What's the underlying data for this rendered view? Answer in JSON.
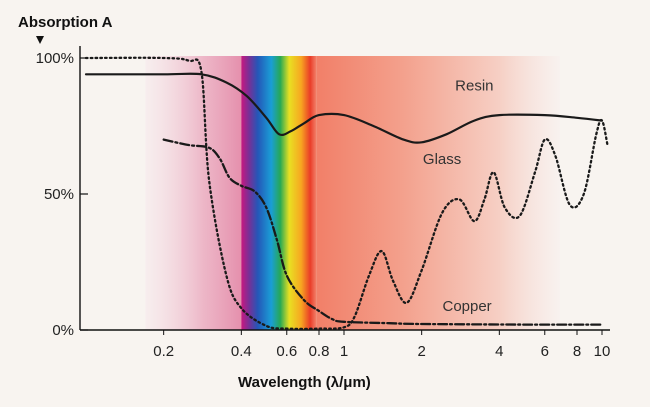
{
  "chart_data": {
    "type": "line",
    "title": "",
    "ylabel": "Absorption A",
    "xlabel": "Wavelength (λ/μm)",
    "x_scale": "log",
    "xlim": [
      0.1,
      11
    ],
    "ylim": [
      0,
      100
    ],
    "grid": false,
    "x_ticks": [
      0.2,
      0.4,
      0.6,
      0.8,
      1,
      2,
      4,
      6,
      8,
      10
    ],
    "x_tick_labels": [
      "0.2",
      "0.4",
      "0.6",
      "0.8",
      "1",
      "2",
      "4",
      "6",
      "8",
      "10"
    ],
    "y_ticks": [
      0,
      50,
      100
    ],
    "y_tick_labels": [
      "0%",
      "50%",
      "100%"
    ],
    "series": [
      {
        "name": "Resin",
        "line_style": "solid",
        "color": "#1a1a1a",
        "x": [
          0.1,
          0.2,
          0.28,
          0.35,
          0.42,
          0.5,
          0.56,
          0.62,
          0.7,
          0.8,
          1.0,
          1.3,
          1.7,
          2.0,
          2.5,
          3.2,
          4.0,
          6.0,
          8.0,
          10.0
        ],
        "y": [
          94,
          94,
          94,
          91,
          86,
          78,
          72,
          73,
          76,
          79,
          79,
          75,
          70,
          69,
          72,
          77,
          79,
          79,
          78,
          77
        ]
      },
      {
        "name": "Glass",
        "line_style": "dotted",
        "color": "#1a1a1a",
        "x": [
          0.1,
          0.2,
          0.25,
          0.28,
          0.3,
          0.35,
          0.4,
          0.5,
          0.6,
          0.8,
          1.0,
          1.1,
          1.25,
          1.4,
          1.55,
          1.75,
          2.0,
          2.4,
          2.8,
          3.2,
          3.5,
          3.8,
          4.2,
          4.8,
          5.5,
          6.0,
          6.6,
          7.5,
          8.5,
          9.5,
          10.0,
          10.5
        ],
        "y": [
          100,
          100,
          99,
          95,
          55,
          20,
          8,
          1.5,
          0.5,
          0.5,
          1,
          5,
          20,
          29,
          18,
          10,
          22,
          43,
          48,
          40,
          48,
          58,
          45,
          42,
          58,
          70,
          64,
          46,
          50,
          72,
          77,
          68
        ]
      },
      {
        "name": "Copper",
        "line_style": "dash-dot",
        "color": "#1a1a1a",
        "x": [
          0.2,
          0.25,
          0.3,
          0.33,
          0.36,
          0.4,
          0.45,
          0.5,
          0.55,
          0.6,
          0.7,
          0.8,
          0.9,
          1.0,
          1.5,
          2.0,
          5.0,
          10.0
        ],
        "y": [
          70,
          68,
          67,
          63,
          56,
          53,
          51,
          45,
          33,
          20,
          11,
          7,
          4,
          3,
          2.5,
          2.2,
          2,
          2
        ]
      }
    ],
    "series_labels": [
      "Resin",
      "Glass",
      "Copper"
    ],
    "background_bands": [
      {
        "name": "ultraviolet",
        "from": 0.2,
        "to": 0.4,
        "color": "#e8a4b8"
      },
      {
        "name": "visible-spectrum",
        "from": 0.4,
        "to": 0.78,
        "colors": [
          "#d9208c",
          "#6b3a9e",
          "#1a63c6",
          "#19a3d9",
          "#2aa84a",
          "#e8e023",
          "#f5a623",
          "#e8352a"
        ]
      },
      {
        "name": "infrared",
        "from": 0.78,
        "to": 10.5,
        "color": "#f28a70"
      }
    ]
  }
}
